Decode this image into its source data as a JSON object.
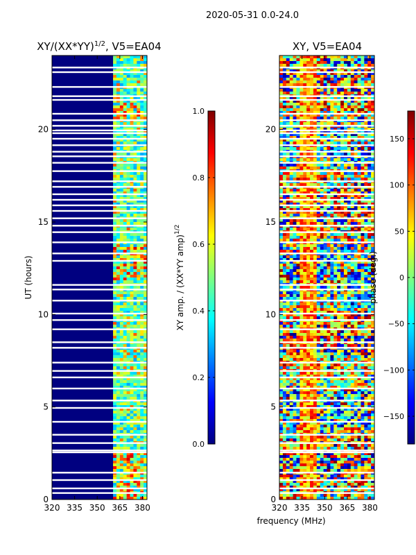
{
  "figure": {
    "suptitle": "2020-05-31 0.0-24.0",
    "xlabel": "frequency (MHz)"
  },
  "colors": {
    "jet": [
      "#00007f",
      "#0000ff",
      "#007fff",
      "#00ffff",
      "#7fff7f",
      "#ffff00",
      "#ff7f00",
      "#ff0000",
      "#7f0000"
    ],
    "gap": "#ffffff",
    "axes": "#000000"
  },
  "chart_data": [
    {
      "type": "heatmap",
      "title": "XY/(XX*YY)^{1/2}, V5=EA04",
      "title_main": "XY/(XX*YY)",
      "title_exp": "1/2",
      "title_tail": ", V5=EA04",
      "xlabel": "",
      "ylabel": "UT (hours)",
      "xlim": [
        320,
        383
      ],
      "ylim": [
        0,
        24
      ],
      "xticks": [
        320,
        335,
        350,
        365,
        380
      ],
      "yticks": [
        0,
        5,
        10,
        15,
        20
      ],
      "active_band_start_mhz": 360,
      "colorbar": {
        "label_main": "XY amp. / (XX*YY amp)",
        "label_exp": "1/2",
        "range": [
          0.0,
          1.0
        ],
        "ticks": [
          0.0,
          0.2,
          0.4,
          0.6,
          0.8,
          1.0
        ],
        "tick_labels": [
          "0.0",
          "0.2",
          "0.4",
          "0.6",
          "0.8",
          "1.0"
        ]
      }
    },
    {
      "type": "heatmap",
      "title": "XY, V5=EA04",
      "xlabel": "frequency (MHz)",
      "ylabel": "",
      "xlim": [
        320,
        383
      ],
      "ylim": [
        0,
        24
      ],
      "xticks": [
        320,
        335,
        350,
        365,
        380
      ],
      "yticks": [
        0,
        5,
        10,
        15,
        20
      ],
      "colorbar": {
        "label": "phase (deg.)",
        "range": [
          -180,
          180
        ],
        "ticks": [
          -150,
          -100,
          -50,
          0,
          50,
          100,
          150
        ],
        "tick_labels": [
          "−150",
          "−100",
          "−50",
          "0",
          "50",
          "100",
          "150"
        ]
      }
    }
  ],
  "data_gaps_ut_hours": [
    0.35,
    0.6,
    1.05,
    1.45,
    2.55,
    2.65,
    3.05,
    3.5,
    4.2,
    4.95,
    5.35,
    6.0,
    6.6,
    6.95,
    7.4,
    8.2,
    8.5,
    9.2,
    9.7,
    10.05,
    10.75,
    11.35,
    11.6,
    12.9,
    13.3,
    13.9,
    14.45,
    14.8,
    15.2,
    15.6,
    15.9,
    16.2,
    16.5,
    16.9,
    17.2,
    17.75,
    18.2,
    18.55,
    18.8,
    19.15,
    19.5,
    19.8,
    19.95,
    20.2,
    20.5,
    20.85,
    21.6,
    21.8,
    22.3,
    23.1,
    23.35
  ]
}
